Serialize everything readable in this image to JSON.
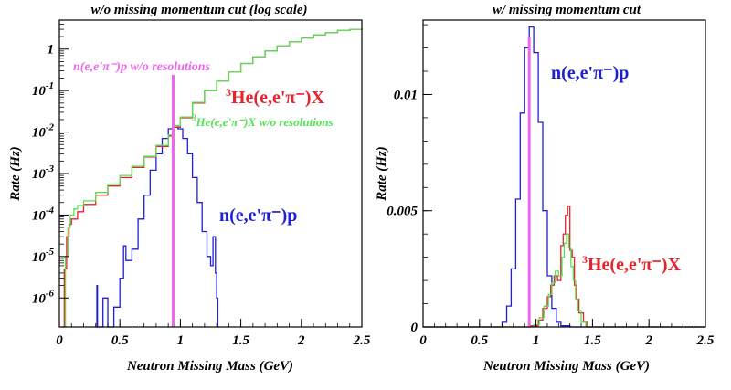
{
  "colors": {
    "blue": "#1f1fd6",
    "red": "#e8232a",
    "green": "#55e055",
    "magenta": "#ee66ee",
    "axis": "#000000"
  },
  "chart_data": [
    {
      "type": "line",
      "title": "w/o missing momentum cut (log scale)",
      "xlabel": "Neutron Missing Mass (GeV)",
      "ylabel": "Rate (Hz)",
      "yscale": "log",
      "xlim": [
        0,
        2.5
      ],
      "ylim": [
        2e-07,
        5
      ],
      "xticks": [
        "0",
        "0.5",
        "1",
        "1.5",
        "2",
        "2.5"
      ],
      "yticks": [
        {
          "base": "10",
          "exp": "-6"
        },
        {
          "base": "10",
          "exp": "-5"
        },
        {
          "base": "10",
          "exp": "-4"
        },
        {
          "base": "10",
          "exp": "-3"
        },
        {
          "base": "10",
          "exp": "-2"
        },
        {
          "base": "10",
          "exp": "-1"
        },
        {
          "base": "1",
          "exp": ""
        }
      ],
      "vline_x": 0.94,
      "annotations": {
        "magenta": "n(e,e'π⁻)p w/o resolutions",
        "red_sup": "3",
        "red": "He(e,e'π⁻)X",
        "green_sup": "3",
        "green": "He(e,e'π⁻)X w/o resolutions",
        "blue": "n(e,e'π⁻)p"
      },
      "series": [
        {
          "name": "n(e,e'π⁻)p",
          "color": "blue",
          "x": [
            0.3,
            0.31,
            0.315,
            0.33,
            0.36,
            0.4,
            0.45,
            0.5,
            0.53,
            0.55,
            0.6,
            0.65,
            0.7,
            0.75,
            0.8,
            0.85,
            0.9,
            0.94,
            0.98,
            1.02,
            1.06,
            1.1,
            1.14,
            1.18,
            1.22,
            1.25,
            1.27,
            1.29,
            1.3,
            1.31,
            1.32
          ],
          "y": [
            2e-07,
            2e-06,
            2e-07,
            2e-07,
            1e-06,
            2e-07,
            6e-07,
            3e-06,
            1.8e-05,
            8e-06,
            1.5e-05,
            8e-05,
            0.0003,
            0.0012,
            0.003,
            0.007,
            0.012,
            0.014,
            0.012,
            0.007,
            0.003,
            0.0008,
            0.0002,
            4e-05,
            1e-05,
            6e-06,
            3e-05,
            4e-06,
            1e-06,
            2e-07,
            2e-07
          ]
        },
        {
          "name": "3He(e,e'π⁻)X",
          "color": "red",
          "x": [
            0.02,
            0.04,
            0.06,
            0.08,
            0.1,
            0.15,
            0.2,
            0.3,
            0.4,
            0.5,
            0.6,
            0.7,
            0.8,
            0.9,
            0.94,
            1.0,
            1.1,
            1.2,
            1.3,
            1.4,
            1.5,
            1.6,
            1.7,
            1.8,
            1.9,
            2.0,
            2.1,
            2.2,
            2.3,
            2.4,
            2.5
          ],
          "y": [
            2e-07,
            5e-06,
            3e-05,
            6e-05,
            8e-05,
            0.00012,
            0.00018,
            0.0003,
            0.0005,
            0.0008,
            0.0014,
            0.0025,
            0.0045,
            0.008,
            0.013,
            0.022,
            0.05,
            0.1,
            0.17,
            0.28,
            0.45,
            0.65,
            0.9,
            1.2,
            1.5,
            1.85,
            2.2,
            2.5,
            2.8,
            3.0,
            3.2
          ]
        },
        {
          "name": "3He(e,e'π⁻)X w/o resolutions",
          "color": "green",
          "x": [
            0.03,
            0.05,
            0.07,
            0.09,
            0.12,
            0.15,
            0.2,
            0.3,
            0.4,
            0.5,
            0.6,
            0.7,
            0.8,
            0.9,
            0.94,
            1.0,
            1.1,
            1.2,
            1.3,
            1.4,
            1.5,
            1.6,
            1.7,
            1.8,
            1.9,
            2.0,
            2.1,
            2.2,
            2.3,
            2.4,
            2.5
          ],
          "y": [
            2e-07,
            1e-05,
            5e-05,
            0.0001,
            0.00014,
            0.00017,
            0.00022,
            0.00035,
            0.00055,
            0.0009,
            0.0015,
            0.0026,
            0.0048,
            0.0085,
            0.014,
            0.023,
            0.052,
            0.1,
            0.17,
            0.28,
            0.45,
            0.65,
            0.9,
            1.2,
            1.5,
            1.85,
            2.2,
            2.5,
            2.8,
            3.0,
            3.2
          ]
        }
      ]
    },
    {
      "type": "line",
      "title": "w/ missing momentum cut",
      "xlabel": "Neutron Missing Mass (GeV)",
      "ylabel": "Rate (Hz)",
      "yscale": "linear",
      "xlim": [
        0,
        2.5
      ],
      "ylim": [
        0,
        0.0132
      ],
      "xticks": [
        "0",
        "0.5",
        "1",
        "1.5",
        "2",
        "2.5"
      ],
      "yticks": [
        {
          "value": 0,
          "label": "0"
        },
        {
          "value": 0.005,
          "label": "0.005"
        },
        {
          "value": 0.01,
          "label": "0.01"
        }
      ],
      "vline_x": 0.94,
      "annotations": {
        "blue": "n(e,e'π⁻)p",
        "red_sup": "3",
        "red": "He(e,e'π⁻)X"
      },
      "series": [
        {
          "name": "n(e,e'π⁻)p",
          "color": "blue",
          "x": [
            0.0,
            0.65,
            0.7,
            0.74,
            0.78,
            0.82,
            0.86,
            0.9,
            0.94,
            0.98,
            1.02,
            1.06,
            1.1,
            1.14,
            1.18,
            1.22,
            1.3,
            2.5
          ],
          "y": [
            0,
            0,
            0.0002,
            0.0009,
            0.0025,
            0.0055,
            0.0092,
            0.012,
            0.0129,
            0.0118,
            0.0088,
            0.005,
            0.0022,
            0.0008,
            0.0002,
            5e-05,
            0,
            0
          ]
        },
        {
          "name": "3He(e,e'π⁻)X",
          "color": "red",
          "x": [
            0.0,
            0.85,
            0.95,
            1.02,
            1.06,
            1.1,
            1.13,
            1.16,
            1.19,
            1.22,
            1.24,
            1.26,
            1.28,
            1.3,
            1.32,
            1.34,
            1.36,
            1.38,
            1.42,
            1.45,
            2.5
          ],
          "y": [
            0,
            0,
            5e-05,
            0.0003,
            0.0008,
            0.0013,
            0.0018,
            0.0022,
            0.002,
            0.0035,
            0.004,
            0.0048,
            0.0052,
            0.0033,
            0.003,
            0.0018,
            0.0012,
            0.0006,
            0.0002,
            0,
            0
          ]
        },
        {
          "name": "3He(e,e'π⁻)X w/o resolutions",
          "color": "green",
          "x": [
            0.0,
            0.9,
            0.98,
            1.03,
            1.07,
            1.11,
            1.14,
            1.17,
            1.2,
            1.23,
            1.25,
            1.27,
            1.29,
            1.31,
            1.33,
            1.35,
            1.37,
            1.4,
            1.44,
            2.5
          ],
          "y": [
            0,
            0,
            0.0001,
            0.0004,
            0.0009,
            0.0014,
            0.0019,
            0.0024,
            0.0022,
            0.003,
            0.0036,
            0.004,
            0.0034,
            0.0026,
            0.002,
            0.0012,
            0.0007,
            0.0002,
            0,
            0
          ]
        }
      ]
    }
  ]
}
